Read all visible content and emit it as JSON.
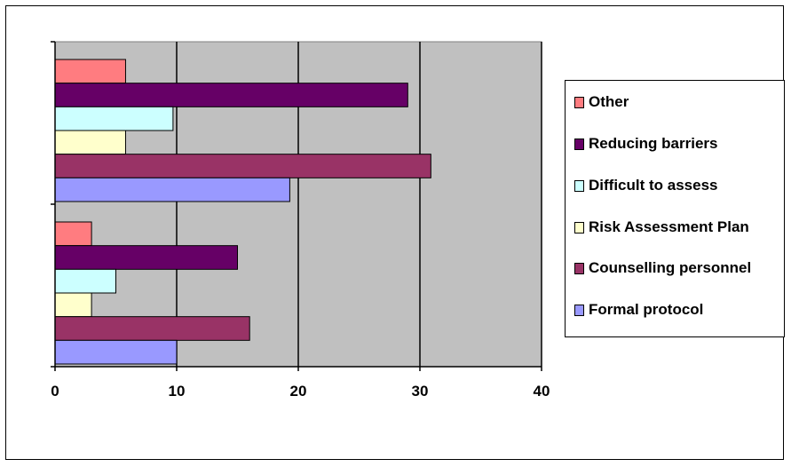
{
  "chart_data": {
    "type": "bar",
    "orientation": "horizontal",
    "title": "",
    "xlabel": "",
    "ylabel": "",
    "xlim": [
      0,
      40
    ],
    "x_ticks": [
      "0",
      "10",
      "20",
      "30",
      "40"
    ],
    "categories": [
      "",
      ""
    ],
    "series": [
      {
        "name": "Other",
        "color": "#FF7C80",
        "values": [
          3,
          5.8
        ]
      },
      {
        "name": "Reducing barriers",
        "color": "#660066",
        "values": [
          15,
          29
        ]
      },
      {
        "name": "Difficult to assess",
        "color": "#CCFFFF",
        "values": [
          5,
          9.7
        ]
      },
      {
        "name": "Risk Assessment Plan",
        "color": "#FFFFCC",
        "values": [
          3,
          5.8
        ]
      },
      {
        "name": "Counselling personnel",
        "color": "#993366",
        "values": [
          16,
          30.9
        ]
      },
      {
        "name": "Formal protocol",
        "color": "#9999FF",
        "values": [
          10,
          19.3
        ]
      }
    ],
    "grid": "vertical major gridlines",
    "plot_background": "#C0C0C0",
    "legend_position": "right"
  }
}
